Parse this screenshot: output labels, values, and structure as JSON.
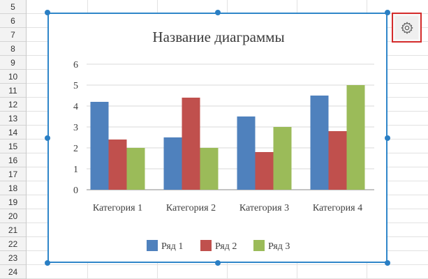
{
  "sheet": {
    "rows": [
      "5",
      "6",
      "7",
      "8",
      "9",
      "10",
      "11",
      "12",
      "13",
      "14",
      "15",
      "16",
      "17",
      "18",
      "19",
      "20",
      "21",
      "22",
      "23",
      "24"
    ]
  },
  "settings": {
    "icon": "gear-icon"
  },
  "colors": {
    "series1": "#4f81bd",
    "series2": "#c0504d",
    "series3": "#9bbb59",
    "selection": "#2f86c9",
    "highlight": "#d42b2b"
  },
  "chart_data": {
    "type": "bar",
    "title": "Название диаграммы",
    "categories": [
      "Категория 1",
      "Категория 2",
      "Категория 3",
      "Категория 4"
    ],
    "series": [
      {
        "name": "Ряд 1",
        "values": [
          4.2,
          2.5,
          3.5,
          4.5
        ]
      },
      {
        "name": "Ряд 2",
        "values": [
          2.4,
          4.4,
          1.8,
          2.8
        ]
      },
      {
        "name": "Ряд 3",
        "values": [
          2,
          2,
          3,
          5
        ]
      }
    ],
    "yticks": [
      "0",
      "1",
      "2",
      "3",
      "4",
      "5",
      "6"
    ],
    "ylim": [
      0,
      6
    ],
    "grid": true,
    "legend": "bottom"
  }
}
